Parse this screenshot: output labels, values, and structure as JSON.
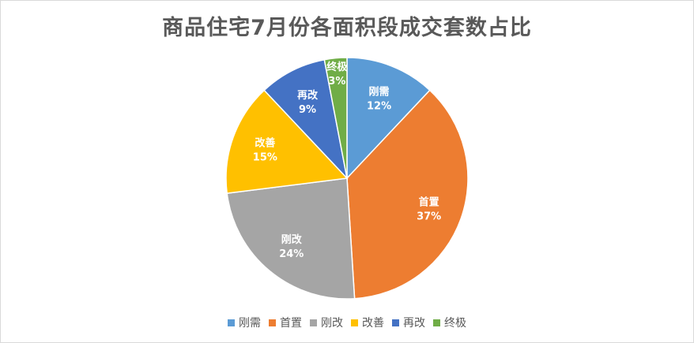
{
  "chart_data": {
    "type": "pie",
    "title": "商品住宅7月份各面积段成交套数占比",
    "categories": [
      "刚需",
      "首置",
      "刚改",
      "改善",
      "再改",
      "终极"
    ],
    "values": [
      12,
      37,
      24,
      15,
      9,
      3
    ],
    "labels": [
      "12%",
      "37%",
      "24%",
      "15%",
      "9%",
      "3%"
    ],
    "colors": [
      "#5B9BD5",
      "#ED7D31",
      "#A5A5A5",
      "#FFC000",
      "#4472C4",
      "#70AD47"
    ],
    "legend_position": "bottom",
    "start_angle_deg": 0,
    "direction": "clockwise"
  }
}
